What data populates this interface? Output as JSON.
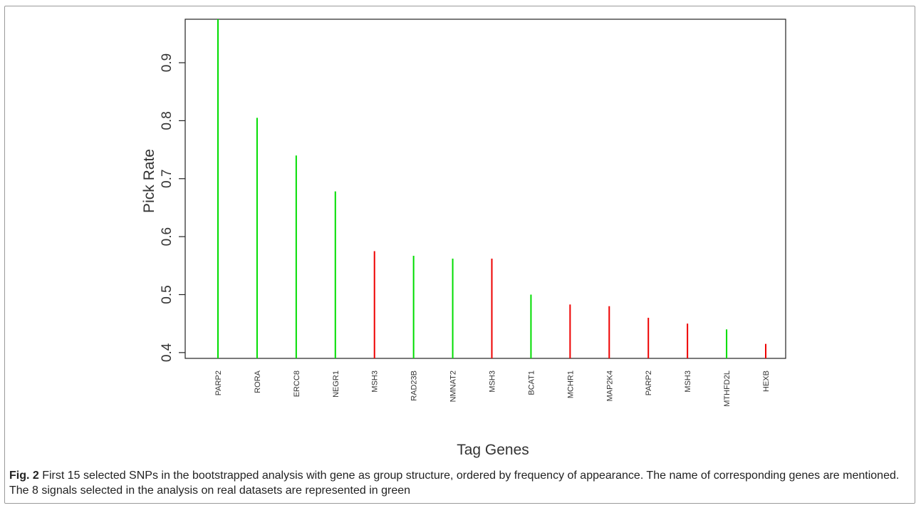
{
  "chart_data": {
    "type": "bar",
    "style": "needle",
    "title": "",
    "xlabel": "Tag Genes",
    "ylabel": "Pick Rate",
    "ylim": [
      0.39,
      0.975
    ],
    "yticks": [
      0.4,
      0.5,
      0.6,
      0.7,
      0.8,
      0.9
    ],
    "ytick_labels": [
      "0.4",
      "0.5",
      "0.6",
      "0.7",
      "0.8",
      "0.9"
    ],
    "categories": [
      "PARP2",
      "RORA",
      "ERCC8",
      "NEGR1",
      "MSH3",
      "RAD23B",
      "NMNAT2",
      "MSH3",
      "BCAT1",
      "MCHR1",
      "MAP2K4",
      "PARP2",
      "MSH3",
      "MTHFD2L",
      "HEXB"
    ],
    "values": [
      0.975,
      0.805,
      0.74,
      0.678,
      0.575,
      0.567,
      0.562,
      0.562,
      0.5,
      0.483,
      0.48,
      0.46,
      0.45,
      0.44,
      0.415
    ],
    "colors": [
      "#00dd00",
      "#00dd00",
      "#00dd00",
      "#00dd00",
      "#ee0000",
      "#00dd00",
      "#00dd00",
      "#ee0000",
      "#00dd00",
      "#ee0000",
      "#ee0000",
      "#ee0000",
      "#ee0000",
      "#00dd00",
      "#ee0000"
    ],
    "grid": false,
    "legend": "none"
  },
  "caption": {
    "label": "Fig. 2",
    "text": " First 15 selected SNPs in the bootstrapped analysis with gene as group structure, ordered by frequency of appearance. The name of corresponding genes are mentioned. The 8 signals selected in the analysis on real datasets are represented in green"
  }
}
